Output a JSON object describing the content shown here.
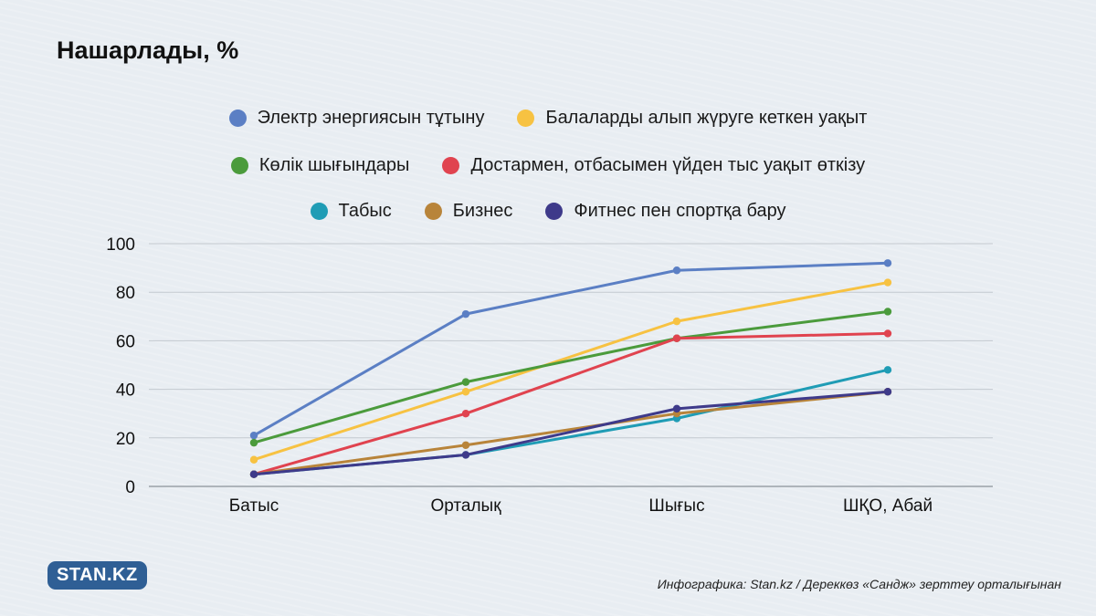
{
  "chart_data": {
    "type": "line",
    "title": "Нашарлады, %",
    "categories": [
      "Батыс",
      "Орталық",
      "Шығыс",
      "ШҚО, Абай"
    ],
    "ylim": [
      0,
      100
    ],
    "yticks": [
      0,
      20,
      40,
      60,
      80,
      100
    ],
    "grid": true,
    "legend_position": "top-center",
    "series": [
      {
        "name": "Электр энергиясын тұтыну",
        "color": "#5b7fc4",
        "values": [
          21,
          71,
          89,
          92
        ]
      },
      {
        "name": "Балаларды алып жүруге кеткен уақыт",
        "color": "#f7c242",
        "values": [
          11,
          39,
          68,
          84
        ]
      },
      {
        "name": "Көлік шығындары",
        "color": "#4b9b3c",
        "values": [
          18,
          43,
          61,
          72
        ]
      },
      {
        "name": "Достармен, отбасымен үйден тыс уақыт өткізу",
        "color": "#e0434f",
        "values": [
          5,
          30,
          61,
          63
        ]
      },
      {
        "name": "Табыс",
        "color": "#1f9cb5",
        "values": [
          5,
          13,
          28,
          48
        ]
      },
      {
        "name": "Бизнес",
        "color": "#b8843a",
        "values": [
          5,
          17,
          30,
          39
        ]
      },
      {
        "name": "Фитнес пен спортқа бару",
        "color": "#3e3a8a",
        "values": [
          5,
          13,
          32,
          39
        ]
      }
    ]
  },
  "logo": {
    "text": "STAN.KZ"
  },
  "source": "Инфографика: Stan.kz / Дереккөз «Сандж» зерттеу орталығынан"
}
